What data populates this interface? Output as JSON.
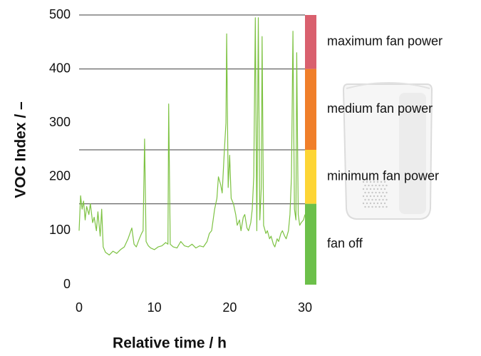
{
  "chart_data": {
    "type": "line",
    "x_label": "Relative time / h",
    "y_label": "VOC Index / –",
    "xlim": [
      0,
      30
    ],
    "ylim": [
      0,
      500
    ],
    "xticks": [
      0,
      10,
      20,
      30
    ],
    "yticks": [
      0,
      100,
      200,
      300,
      400,
      500
    ],
    "zones": [
      {
        "label": "fan off",
        "from": 0,
        "to": 150,
        "color": "#6cc04a"
      },
      {
        "label": "minimum fan power",
        "from": 150,
        "to": 250,
        "color": "#fdd535"
      },
      {
        "label": "medium fan power",
        "from": 250,
        "to": 400,
        "color": "#f07f2a"
      },
      {
        "label": "maximum fan power",
        "from": 400,
        "to": 500,
        "color": "#d9606e"
      }
    ],
    "series": [
      {
        "color": "#7dc242",
        "x": [
          0,
          0.2,
          0.4,
          0.6,
          0.8,
          1,
          1.3,
          1.5,
          1.8,
          2,
          2.3,
          2.5,
          2.8,
          3,
          3.2,
          3.5,
          4,
          4.5,
          5,
          5.5,
          6,
          6.5,
          7,
          7.3,
          7.6,
          8,
          8.3,
          8.5,
          8.7,
          8.9,
          9.2,
          9.5,
          10,
          10.5,
          11,
          11.5,
          11.8,
          11.9,
          12.1,
          12.5,
          13,
          13.5,
          14,
          14.5,
          15,
          15.5,
          16,
          16.5,
          17,
          17.3,
          17.6,
          18,
          18.3,
          18.5,
          18.8,
          19,
          19.3,
          19.5,
          19.6,
          19.8,
          20,
          20.2,
          20.5,
          20.8,
          21,
          21.3,
          21.5,
          21.8,
          22,
          22.3,
          22.5,
          22.8,
          23,
          23.2,
          23.4,
          23.6,
          23.8,
          24,
          24.2,
          24.3,
          24.5,
          24.8,
          25,
          25.3,
          25.5,
          25.8,
          26,
          26.3,
          26.5,
          26.8,
          27,
          27.3,
          27.5,
          27.8,
          28,
          28.2,
          28.4,
          28.6,
          28.8,
          28.9,
          29.1,
          29.3,
          29.5,
          29.8,
          30
        ],
        "values": [
          100,
          165,
          140,
          155,
          120,
          145,
          130,
          150,
          115,
          125,
          100,
          135,
          90,
          140,
          70,
          60,
          55,
          62,
          58,
          65,
          70,
          85,
          105,
          75,
          70,
          85,
          95,
          100,
          270,
          80,
          72,
          68,
          65,
          70,
          72,
          78,
          75,
          335,
          75,
          70,
          68,
          80,
          72,
          70,
          75,
          68,
          72,
          70,
          80,
          95,
          100,
          140,
          160,
          200,
          185,
          170,
          250,
          300,
          465,
          180,
          240,
          160,
          150,
          130,
          110,
          120,
          100,
          125,
          130,
          105,
          100,
          115,
          140,
          200,
          495,
          100,
          495,
          120,
          180,
          460,
          110,
          95,
          100,
          85,
          90,
          75,
          70,
          85,
          80,
          95,
          100,
          90,
          85,
          100,
          130,
          200,
          470,
          140,
          120,
          430,
          130,
          110,
          115,
          120,
          130
        ]
      }
    ]
  }
}
